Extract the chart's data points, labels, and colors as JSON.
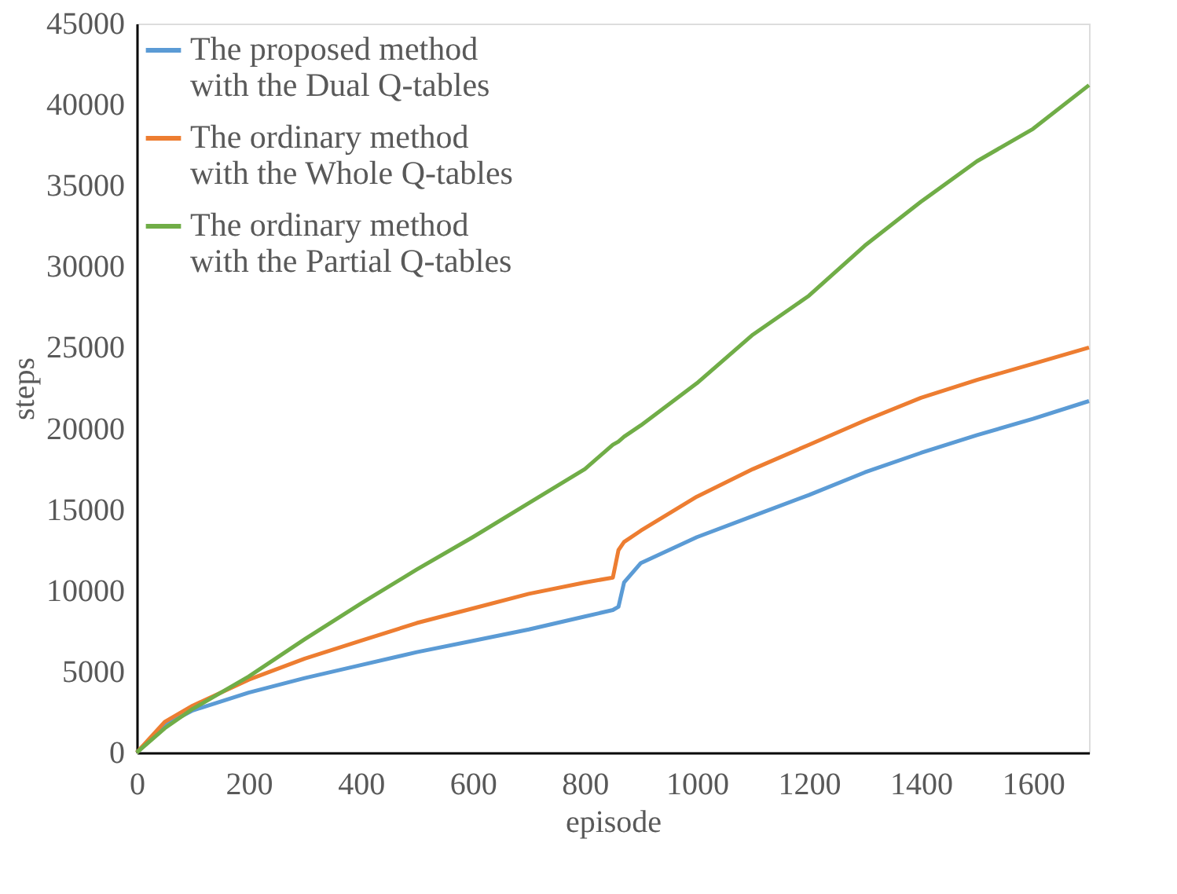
{
  "chart_data": {
    "type": "line",
    "xlabel": "episode",
    "ylabel": "steps",
    "xlim": [
      0,
      1700
    ],
    "ylim": [
      0,
      45000
    ],
    "xticks": [
      0,
      200,
      400,
      600,
      800,
      1000,
      1200,
      1400,
      1600
    ],
    "yticks": [
      0,
      5000,
      10000,
      15000,
      20000,
      25000,
      30000,
      35000,
      40000,
      45000
    ],
    "grid": false,
    "legend": "top left",
    "marker": "none",
    "line_style": "solid",
    "x": [
      0,
      50,
      100,
      200,
      300,
      400,
      500,
      600,
      700,
      800,
      850,
      860,
      870,
      900,
      1000,
      1100,
      1200,
      1300,
      1400,
      1500,
      1600,
      1700
    ],
    "series": [
      {
        "name": "The proposed method\nwith the Dual Q-tables",
        "color": "#5b9bd5",
        "values": [
          0,
          1700,
          2600,
          3700,
          4600,
          5400,
          6200,
          6900,
          7600,
          8400,
          8800,
          9000,
          10500,
          11700,
          13300,
          14600,
          15900,
          17300,
          18500,
          19600,
          20600,
          21700
        ]
      },
      {
        "name": "The ordinary method\nwith the Whole Q-tables",
        "color": "#ed7d31",
        "values": [
          0,
          1900,
          2900,
          4500,
          5800,
          6900,
          8000,
          8900,
          9800,
          10500,
          10800,
          12500,
          13000,
          13700,
          15800,
          17500,
          19000,
          20500,
          21900,
          23000,
          24000,
          25000
        ]
      },
      {
        "name": "The ordinary method\nwith the Partial Q-tables",
        "color": "#70ad47",
        "values": [
          0,
          1500,
          2700,
          4700,
          7000,
          9200,
          11300,
          13300,
          15400,
          17500,
          19000,
          19200,
          19500,
          20200,
          22800,
          25800,
          28200,
          31300,
          34000,
          36500,
          38500,
          41200
        ]
      }
    ]
  }
}
